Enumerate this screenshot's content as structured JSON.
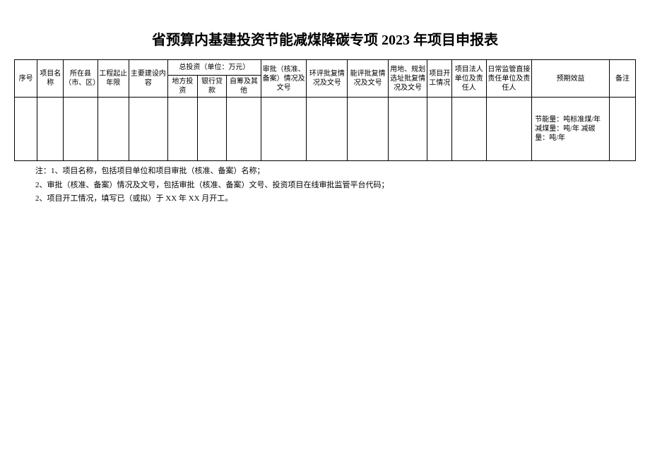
{
  "title": "省预算内基建投资节能减煤降碳专项 2023 年项目申报表",
  "table": {
    "header_group_investment": "总投资（单位：万元）",
    "columns": {
      "seq": "序号",
      "name": "项目名称",
      "county": "所在县（市、区）",
      "period": "工程起止年限",
      "content": "主要建设内容",
      "inv_local": "地方投资",
      "inv_bank": "银行贷款",
      "inv_other": "自筹及其他",
      "approve": "审批（核准、备案）情况及文号",
      "env": "环评批复情况及文号",
      "energy": "能评批复情况及文号",
      "land": "用地、规划选址批复情况及文号",
      "start": "项目开工情况",
      "legal": "项目法人单位及责任人",
      "daily": "日常监管直接责任单位及责任人",
      "benefit": "预期效益",
      "note": "备注"
    },
    "data_row": {
      "benefit_text": "节能量：吨标准煤/年减煤量：吨/年 减碳量：吨/年"
    }
  },
  "notes": {
    "n1": "注：1、项目名称，包括项目单位和项目审批（核准、备案）名称；",
    "n2": "2、审批（核准、备案）情况及文号，包括审批（核准、备案）文号、投资项目在线审批监管平台代码；",
    "n3": "2、项目开工情况，填写已（或拟）于 XX 年 XX 月开工。"
  }
}
